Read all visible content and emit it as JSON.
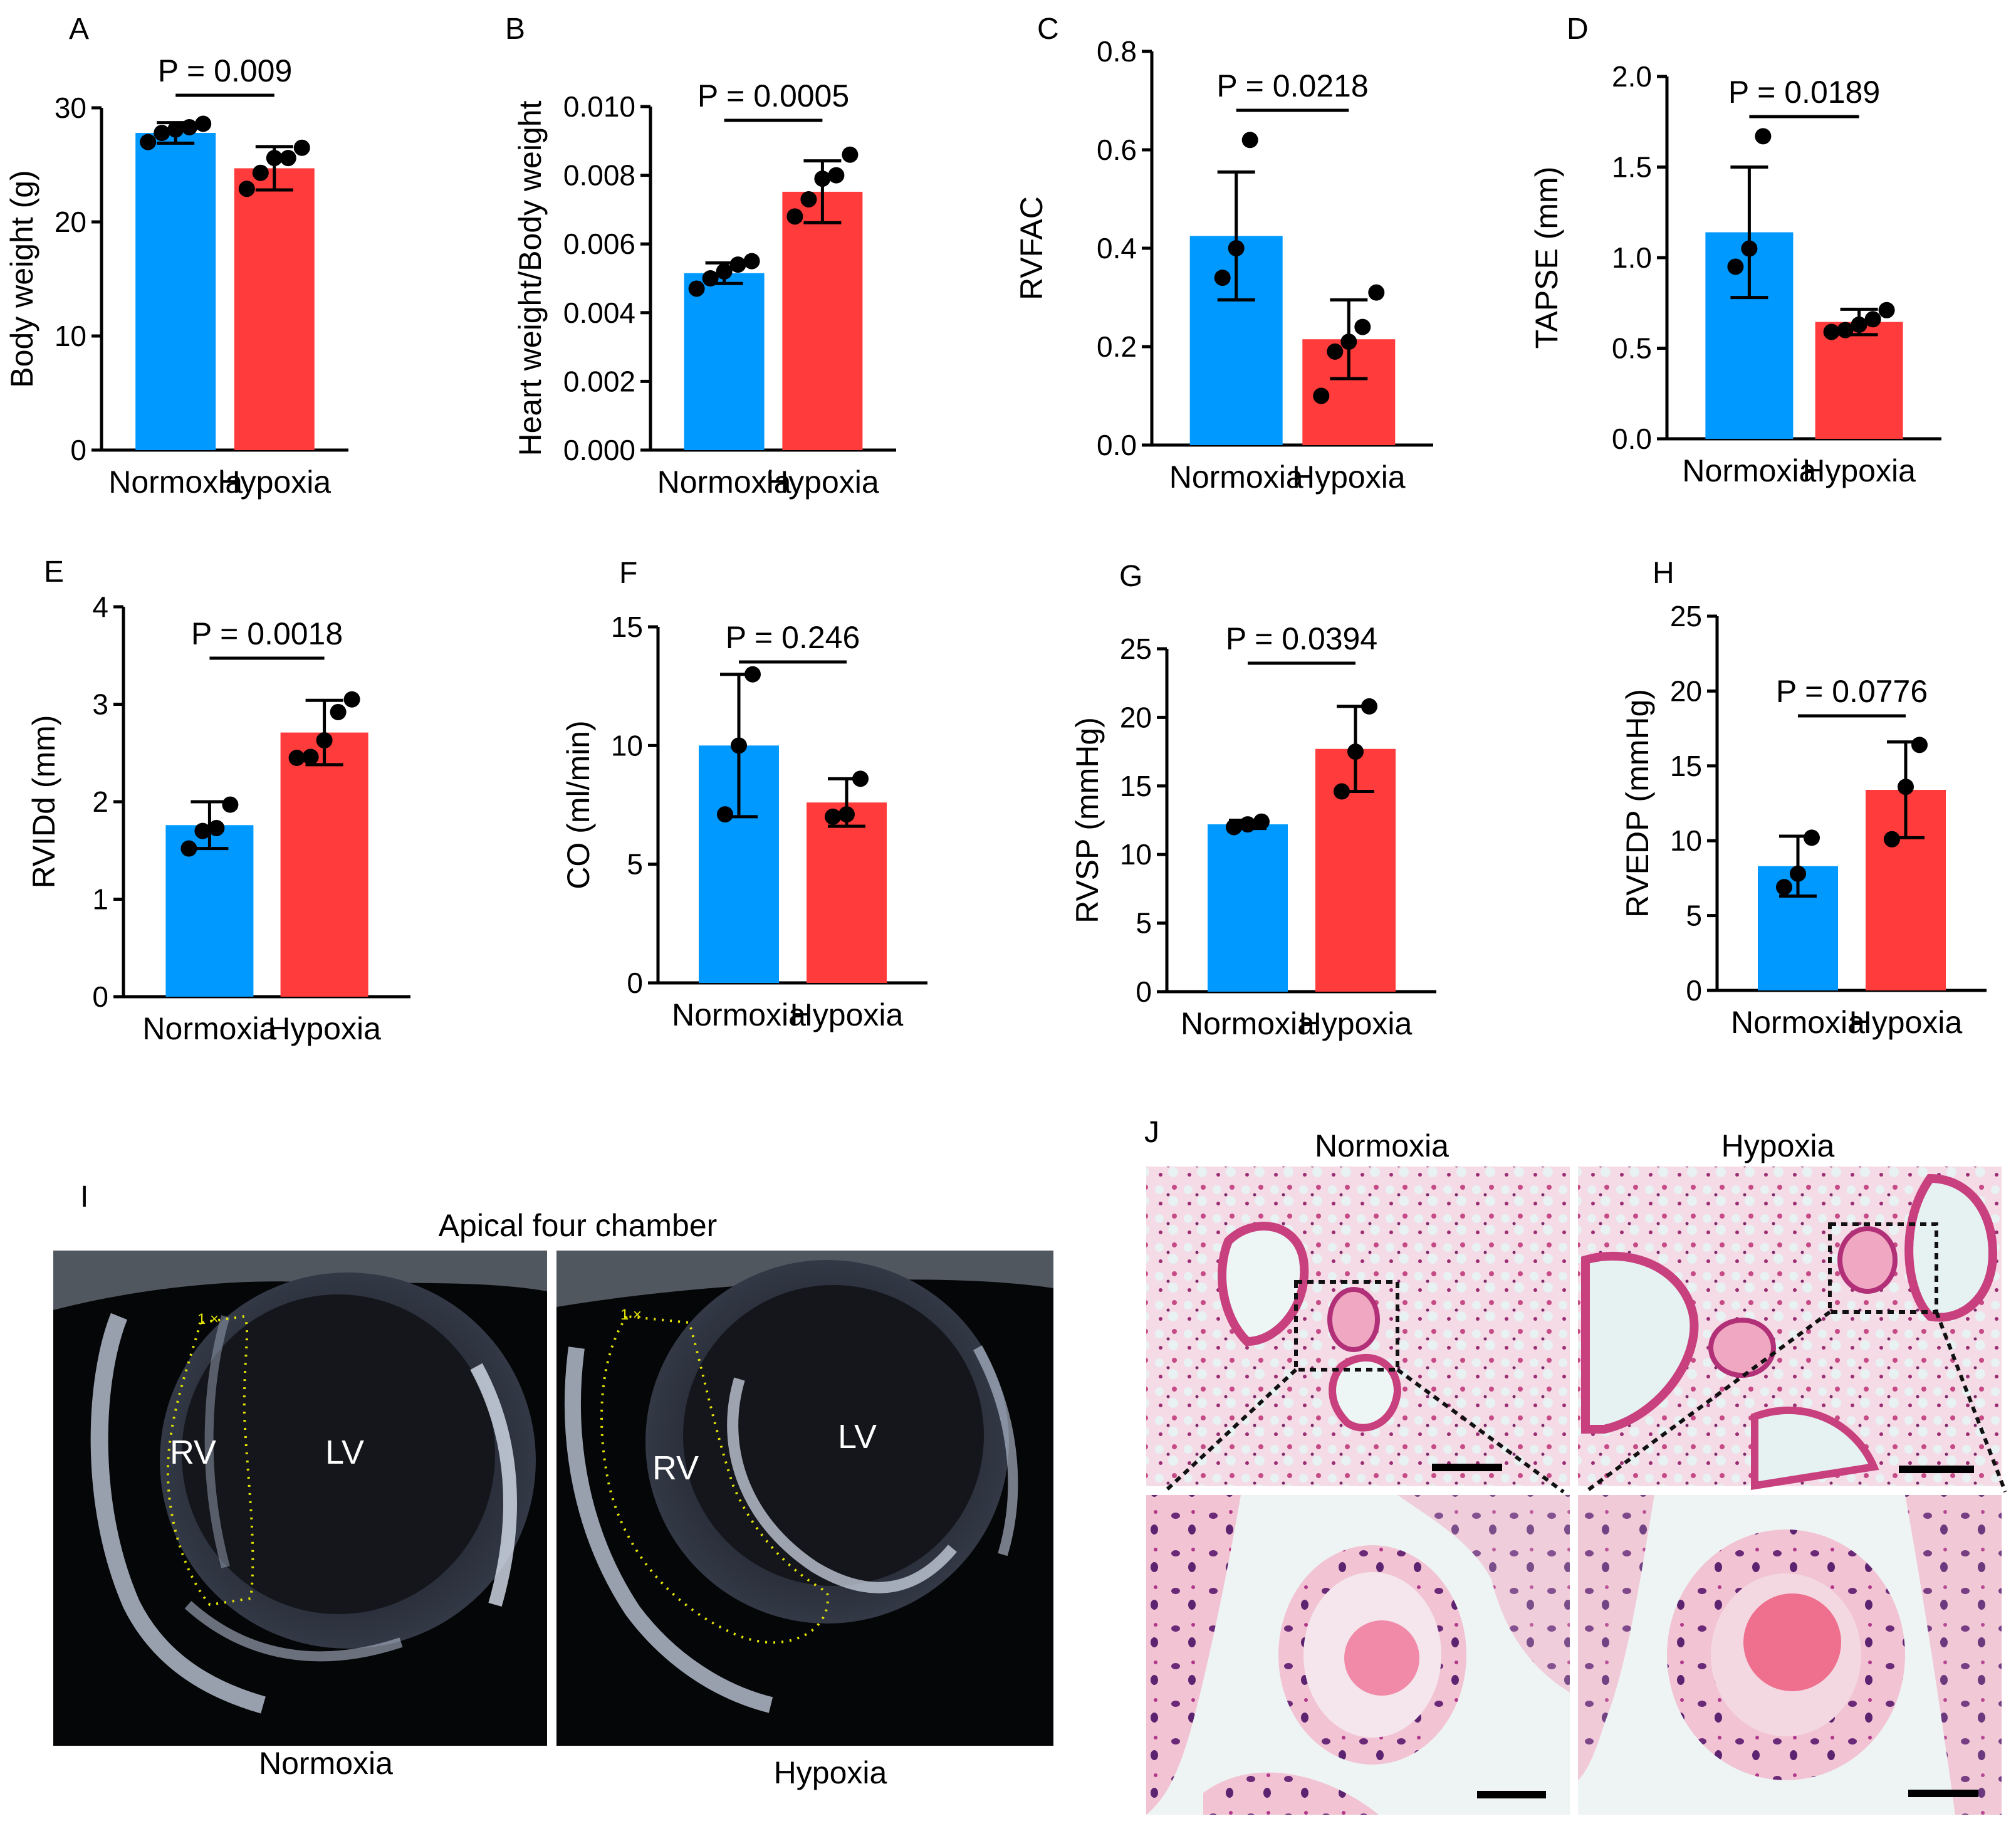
{
  "colors": {
    "normoxia": "#0099ff",
    "hypoxia": "#ff3b3b",
    "axis": "#000000"
  },
  "chart_data": [
    {
      "panel": "A",
      "type": "bar",
      "ylabel": "Body weight (g)",
      "categories": [
        "Normoxia",
        "Hypoxia"
      ],
      "yticks": [
        "0",
        "10",
        "20",
        "30"
      ],
      "ylim": [
        0,
        30
      ],
      "values": [
        27.8,
        24.7
      ],
      "sd": [
        0.9,
        1.9
      ],
      "points": [
        [
          27.0,
          27.8,
          28.1,
          28.3,
          28.6
        ],
        [
          22.9,
          24.3,
          25.6,
          25.6,
          26.5
        ]
      ],
      "pvalue": "P = 0.009"
    },
    {
      "panel": "B",
      "type": "bar",
      "ylabel": "Heart weight/Body weight",
      "categories": [
        "Normoxia",
        "Hypoxia"
      ],
      "yticks": [
        "0.000",
        "0.002",
        "0.004",
        "0.006",
        "0.008",
        "0.010"
      ],
      "ylim": [
        0,
        0.01
      ],
      "values": [
        0.00515,
        0.00752
      ],
      "sd": [
        0.0003,
        0.0009
      ],
      "points": [
        [
          0.0047,
          0.005,
          0.0052,
          0.0054,
          0.0055
        ],
        [
          0.0068,
          0.0073,
          0.0079,
          0.008,
          0.0086
        ]
      ],
      "pvalue": "P = 0.0005"
    },
    {
      "panel": "C",
      "type": "bar",
      "ylabel": "RVFAC",
      "categories": [
        "Normoxia",
        "Hypoxia"
      ],
      "yticks": [
        "0.0",
        "0.2",
        "0.4",
        "0.6",
        "0.8"
      ],
      "ylim": [
        0,
        0.8
      ],
      "values": [
        0.425,
        0.215
      ],
      "sd": [
        0.13,
        0.08
      ],
      "points": [
        [
          0.34,
          0.4,
          0.62
        ],
        [
          0.1,
          0.19,
          0.21,
          0.24,
          0.31
        ]
      ],
      "pvalue": "P = 0.0218"
    },
    {
      "panel": "D",
      "type": "bar",
      "ylabel": "TAPSE (mm)",
      "categories": [
        "Normoxia",
        "Hypoxia"
      ],
      "yticks": [
        "0.0",
        "0.5",
        "1.0",
        "1.5",
        "2.0"
      ],
      "ylim": [
        0,
        2.0
      ],
      "values": [
        1.14,
        0.645
      ],
      "sd": [
        0.36,
        0.07
      ],
      "points": [
        [
          0.95,
          1.05,
          1.67
        ],
        [
          0.59,
          0.6,
          0.63,
          0.66,
          0.71
        ]
      ],
      "pvalue": "P = 0.0189"
    },
    {
      "panel": "E",
      "type": "bar",
      "ylabel": "RVIDd (mm)",
      "categories": [
        "Normoxia",
        "Hypoxia"
      ],
      "yticks": [
        "0",
        "1",
        "2",
        "3",
        "4"
      ],
      "ylim": [
        0,
        4
      ],
      "values": [
        1.76,
        2.71
      ],
      "sd": [
        0.24,
        0.33
      ],
      "points": [
        [
          1.52,
          1.7,
          1.73,
          1.97
        ],
        [
          2.45,
          2.46,
          2.63,
          2.92,
          3.05
        ]
      ],
      "pvalue": "P = 0.0018"
    },
    {
      "panel": "F",
      "type": "bar",
      "ylabel": "CO (ml/min)",
      "categories": [
        "Normoxia",
        "Hypoxia"
      ],
      "yticks": [
        "0",
        "5",
        "10",
        "15"
      ],
      "ylim": [
        0,
        15
      ],
      "values": [
        10.0,
        7.6
      ],
      "sd": [
        3.0,
        1.0
      ],
      "points": [
        [
          7.1,
          10.0,
          13.0
        ],
        [
          7.0,
          7.1,
          8.6
        ]
      ],
      "pvalue": "P = 0.246"
    },
    {
      "panel": "G",
      "type": "bar",
      "ylabel": "RVSP (mmHg)",
      "categories": [
        "Normoxia",
        "Hypoxia"
      ],
      "yticks": [
        "0",
        "5",
        "10",
        "15",
        "20",
        "25"
      ],
      "ylim": [
        0,
        25
      ],
      "values": [
        12.2,
        17.7
      ],
      "sd": [
        0.3,
        3.1
      ],
      "points": [
        [
          12.0,
          12.2,
          12.4
        ],
        [
          14.6,
          17.5,
          20.8
        ]
      ],
      "pvalue": "P = 0.0394"
    },
    {
      "panel": "H",
      "type": "bar",
      "ylabel": "RVEDP (mmHg)",
      "categories": [
        "Normoxia",
        "Hypoxia"
      ],
      "yticks": [
        "0",
        "5",
        "10",
        "15",
        "20",
        "25"
      ],
      "ylim": [
        0,
        25
      ],
      "values": [
        8.3,
        13.4
      ],
      "sd": [
        2.0,
        3.2
      ],
      "points": [
        [
          6.9,
          7.8,
          10.2
        ],
        [
          10.1,
          13.6,
          16.4
        ]
      ],
      "pvalue": "P = 0.0776"
    }
  ],
  "panel_i": {
    "letter": "I",
    "title": "Apical four chamber",
    "left": {
      "caption": "Normoxia",
      "rv": "RV",
      "lv": "LV"
    },
    "right": {
      "caption": "Hypoxia",
      "rv": "RV",
      "lv": "LV"
    }
  },
  "panel_j": {
    "letter": "J",
    "left_title": "Normoxia",
    "right_title": "Hypoxia"
  }
}
